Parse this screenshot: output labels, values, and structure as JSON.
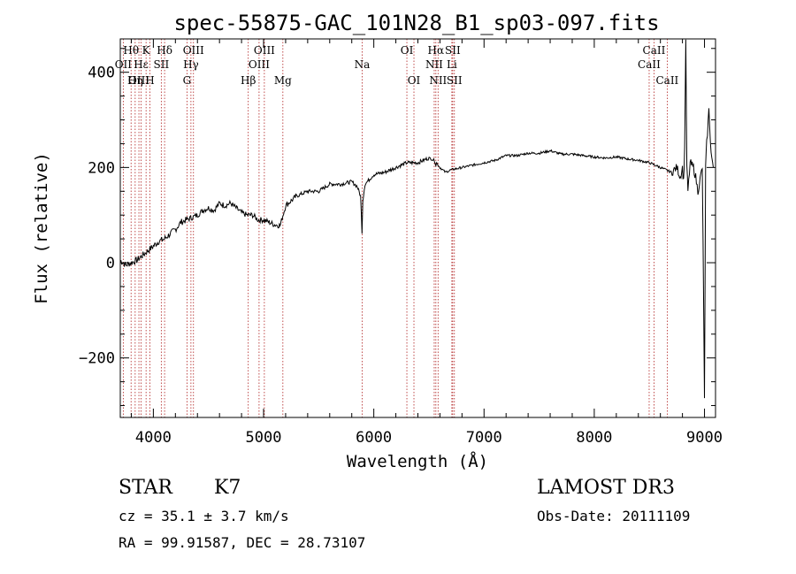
{
  "chart_data": {
    "type": "line",
    "title": "spec-55875-GAC_101N28_B1_sp03-097.fits",
    "xlabel": "Wavelength (Å)",
    "ylabel": "Flux (relative)",
    "xlim": [
      3700,
      9100
    ],
    "ylim": [
      -325,
      470
    ],
    "xticks": [
      4000,
      5000,
      6000,
      7000,
      8000,
      9000
    ],
    "xtick_labels": [
      "4000",
      "5000",
      "6000",
      "7000",
      "8000",
      "9000"
    ],
    "yticks": [
      -200,
      0,
      200,
      400
    ],
    "ytick_labels": [
      "−200",
      "0",
      "200",
      "400"
    ],
    "series": [
      {
        "name": "Flux",
        "x": [
          3700,
          3750,
          3800,
          3850,
          3900,
          3950,
          4000,
          4050,
          4100,
          4150,
          4200,
          4250,
          4300,
          4350,
          4400,
          4450,
          4500,
          4550,
          4600,
          4650,
          4700,
          4750,
          4800,
          4850,
          4900,
          4950,
          5000,
          5050,
          5100,
          5150,
          5200,
          5250,
          5300,
          5400,
          5500,
          5600,
          5700,
          5800,
          5850,
          5880,
          5893,
          5900,
          5920,
          6000,
          6100,
          6200,
          6300,
          6400,
          6500,
          6550,
          6563,
          6570,
          6600,
          6650,
          6700,
          6800,
          6900,
          7000,
          7100,
          7200,
          7300,
          7400,
          7500,
          7600,
          7700,
          7800,
          7900,
          8000,
          8100,
          8200,
          8300,
          8400,
          8500,
          8600,
          8700,
          8750,
          8780,
          8800,
          8810,
          8820,
          8830,
          8840,
          8850,
          8870,
          8900,
          8920,
          8940,
          8960,
          8980,
          9000,
          9010,
          9020,
          9040,
          9060,
          9080
        ],
        "values": [
          5,
          -5,
          0,
          5,
          15,
          25,
          35,
          45,
          50,
          60,
          70,
          85,
          90,
          95,
          100,
          110,
          115,
          110,
          125,
          120,
          125,
          115,
          105,
          100,
          100,
          90,
          90,
          85,
          80,
          78,
          120,
          130,
          140,
          150,
          150,
          165,
          165,
          170,
          160,
          140,
          65,
          130,
          165,
          185,
          190,
          200,
          210,
          210,
          220,
          215,
          205,
          210,
          200,
          190,
          195,
          200,
          205,
          210,
          215,
          225,
          225,
          230,
          230,
          235,
          228,
          228,
          225,
          222,
          220,
          222,
          218,
          215,
          210,
          200,
          190,
          200,
          180,
          200,
          170,
          240,
          460,
          200,
          150,
          210,
          200,
          180,
          150,
          175,
          200,
          -280,
          200,
          250,
          320,
          230,
          200
        ]
      }
    ],
    "line_markers": [
      {
        "label": "Hθ",
        "wavelength": 3798,
        "row": 1
      },
      {
        "label": "OII",
        "wavelength": 3727,
        "row": 2
      },
      {
        "label": "OIII",
        "wavelength": 3869,
        "row": 3
      },
      {
        "label": "Hη",
        "wavelength": 3835,
        "row": 3
      },
      {
        "label": "Hε",
        "wavelength": 3889,
        "row": 2
      },
      {
        "label": "K",
        "wavelength": 3934,
        "row": 1
      },
      {
        "label": "H",
        "wavelength": 3969,
        "row": 3
      },
      {
        "label": "SII",
        "wavelength": 4072,
        "row": 2
      },
      {
        "label": "Hδ",
        "wavelength": 4102,
        "row": 1
      },
      {
        "label": "OIII",
        "wavelength": 4364,
        "row": 1
      },
      {
        "label": "Hγ",
        "wavelength": 4341,
        "row": 2
      },
      {
        "label": "G",
        "wavelength": 4305,
        "row": 3
      },
      {
        "label": "OIII",
        "wavelength": 5007,
        "row": 1
      },
      {
        "label": "OIII",
        "wavelength": 4959,
        "row": 2
      },
      {
        "label": "Hβ",
        "wavelength": 4861,
        "row": 3
      },
      {
        "label": "Mg",
        "wavelength": 5175,
        "row": 3
      },
      {
        "label": "Na",
        "wavelength": 5894,
        "row": 2
      },
      {
        "label": "OI",
        "wavelength": 6300,
        "row": 1
      },
      {
        "label": "OI",
        "wavelength": 6364,
        "row": 3
      },
      {
        "label": "Hα",
        "wavelength": 6563,
        "row": 1
      },
      {
        "label": "NII",
        "wavelength": 6548,
        "row": 2
      },
      {
        "label": "NII",
        "wavelength": 6583,
        "row": 3
      },
      {
        "label": "SII",
        "wavelength": 6716,
        "row": 1
      },
      {
        "label": "Li",
        "wavelength": 6708,
        "row": 2
      },
      {
        "label": "SII",
        "wavelength": 6731,
        "row": 3
      },
      {
        "label": "CaII",
        "wavelength": 8498,
        "row": 2
      },
      {
        "label": "CaII",
        "wavelength": 8542,
        "row": 1
      },
      {
        "label": "CaII",
        "wavelength": 8662,
        "row": 3
      }
    ]
  },
  "info": {
    "class_label": "STAR",
    "subclass": "K7",
    "survey": "LAMOST DR3",
    "redshift": "cz = 35.1 ± 3.7 km/s",
    "obs_date": "Obs-Date: 20111109",
    "coords": "RA =  99.91587, DEC =  28.73107"
  }
}
